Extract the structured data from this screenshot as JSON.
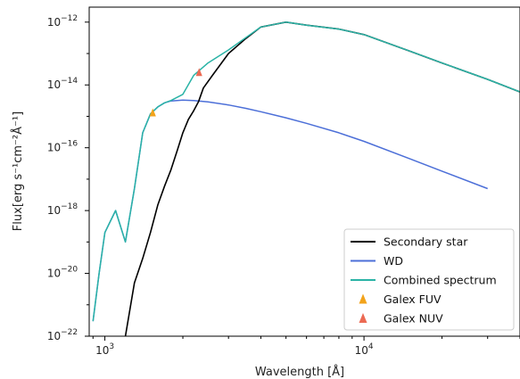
{
  "chart_data": {
    "type": "line",
    "xlabel": "Wavelength [Å]",
    "ylabel": "Flux[erg s⁻¹cm⁻²Å⁻¹]",
    "xscale": "log",
    "yscale": "log",
    "xlim": [
      870,
      40000
    ],
    "ylim": [
      1e-22,
      3e-12
    ],
    "grid": false,
    "legend_placement": "lower-right",
    "x_ticks": [
      {
        "value": 1000,
        "label_base": "10",
        "label_exp": "3"
      },
      {
        "value": 10000,
        "label_base": "10",
        "label_exp": "4"
      }
    ],
    "y_ticks": [
      {
        "value": 1e-12,
        "label_base": "10",
        "label_exp": "−12"
      },
      {
        "value": 1e-14,
        "label_base": "10",
        "label_exp": "−14"
      },
      {
        "value": 1e-16,
        "label_base": "10",
        "label_exp": "−16"
      },
      {
        "value": 1e-18,
        "label_base": "10",
        "label_exp": "−18"
      },
      {
        "value": 1e-20,
        "label_base": "10",
        "label_exp": "−20"
      },
      {
        "value": 1e-22,
        "label_base": "10",
        "label_exp": "−22"
      }
    ],
    "series": [
      {
        "name": "Secondary star",
        "color": "#000000",
        "x": [
          1200,
          1300,
          1400,
          1500,
          1600,
          1700,
          1800,
          1900,
          2000,
          2100,
          2200,
          2300,
          2400,
          2600,
          3000,
          3500,
          4000,
          5000,
          6000,
          8000,
          10000,
          15000,
          20000,
          30000,
          40000
        ],
        "y": [
          1e-22,
          5e-21,
          3e-20,
          2e-19,
          1.5e-18,
          6e-18,
          2e-17,
          8e-17,
          3e-16,
          8e-16,
          1.5e-15,
          3e-15,
          8e-15,
          2e-14,
          1e-13,
          3e-13,
          7e-13,
          1e-12,
          8e-13,
          6e-13,
          4e-13,
          1.2e-13,
          5e-14,
          1.5e-14,
          6e-15
        ]
      },
      {
        "name": "WD",
        "color": "#4c6fd8",
        "x": [
          900,
          950,
          1000,
          1100,
          1200,
          1300,
          1400,
          1500,
          1600,
          1700,
          1800,
          2000,
          2200,
          2500,
          3000,
          3500,
          4000,
          5000,
          6000,
          8000,
          10000,
          15000,
          20000,
          30000
        ],
        "y": [
          3e-22,
          1e-20,
          2e-19,
          1e-18,
          1e-19,
          5e-18,
          3e-16,
          1.2e-15,
          2e-15,
          2.7e-15,
          3.1e-15,
          3.3e-15,
          3.2e-15,
          2.9e-15,
          2.3e-15,
          1.8e-15,
          1.4e-15,
          9e-16,
          6e-16,
          3e-16,
          1.6e-16,
          4.5e-17,
          1.8e-17,
          5e-18
        ]
      },
      {
        "name": "Combined spectrum",
        "color": "#2ab3a6",
        "x": [
          900,
          950,
          1000,
          1100,
          1200,
          1300,
          1400,
          1500,
          1600,
          1700,
          1800,
          2000,
          2200,
          2500,
          3000,
          3500,
          4000,
          5000,
          6000,
          8000,
          10000,
          15000,
          20000,
          30000,
          40000
        ],
        "y": [
          3e-22,
          1e-20,
          2e-19,
          1e-18,
          1e-19,
          5e-18,
          3e-16,
          1.2e-15,
          2e-15,
          2.7e-15,
          3.2e-15,
          5e-15,
          2e-14,
          5e-14,
          1.3e-13,
          3.2e-13,
          7e-13,
          1e-12,
          8e-13,
          6e-13,
          4e-13,
          1.2e-13,
          5e-14,
          1.5e-14,
          6e-15
        ]
      }
    ],
    "points": [
      {
        "name": "Galex FUV",
        "color": "#f2a31b",
        "x": 1530,
        "y": 1.3e-15
      },
      {
        "name": "Galex NUV",
        "color": "#ec6a53",
        "x": 2310,
        "y": 2.5e-14
      }
    ],
    "legend": [
      {
        "label": "Secondary star",
        "kind": "line",
        "color": "#000000"
      },
      {
        "label": "WD",
        "kind": "line",
        "color": "#4c6fd8"
      },
      {
        "label": "Combined spectrum",
        "kind": "line",
        "color": "#2ab3a6"
      },
      {
        "label": "Galex FUV",
        "kind": "marker",
        "color": "#f2a31b"
      },
      {
        "label": "Galex NUV",
        "kind": "marker",
        "color": "#ec6a53"
      }
    ]
  }
}
